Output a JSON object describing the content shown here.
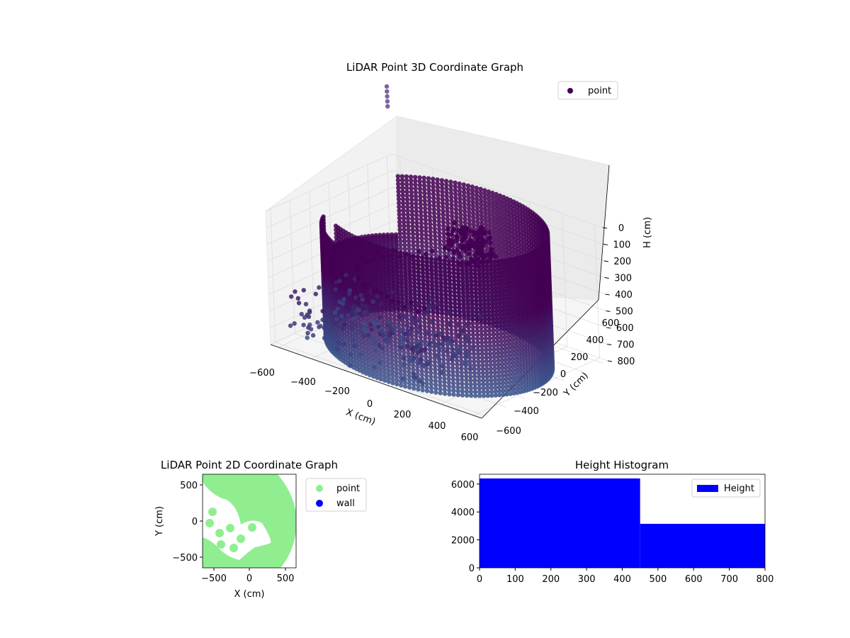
{
  "chart_data": [
    {
      "type": "scatter3d",
      "title": "LiDAR Point 3D Coordinate Graph",
      "xlabel": "X (cm)",
      "ylabel": "Y (cm)",
      "zlabel": "H (cm)",
      "xlim": [
        -650,
        650
      ],
      "ylim": [
        -650,
        650
      ],
      "zlim": [
        0,
        800
      ],
      "z_inverted": true,
      "x_ticks": [
        "−600",
        "−400",
        "−200",
        "0",
        "200",
        "400",
        "600"
      ],
      "y_ticks": [
        "−600",
        "−400",
        "−200",
        "0",
        "200",
        "400",
        "600"
      ],
      "z_ticks": [
        "0",
        "100",
        "200",
        "300",
        "400",
        "500",
        "600",
        "700",
        "800"
      ],
      "grid": true,
      "legend": {
        "position": "top-right",
        "entries": [
          "point"
        ]
      },
      "colormap": "viridis",
      "colors": {
        "low": "#440154",
        "mid": "#3b528b",
        "high": "#31688e"
      },
      "structure": {
        "ring_radius": 600,
        "ring_height_range": [
          0,
          800
        ],
        "columns": 160,
        "rows_per_column": 36
      }
    },
    {
      "type": "scatter",
      "title": "LiDAR Point 2D Coordinate Graph",
      "xlabel": "X (cm)",
      "ylabel": "Y (cm)",
      "xlim": [
        -650,
        650
      ],
      "ylim": [
        -650,
        650
      ],
      "x_ticks": [
        "−500",
        "0",
        "500"
      ],
      "y_ticks": [
        "500",
        "0",
        "−500"
      ],
      "legend": {
        "position": "outside-right",
        "entries": [
          "point",
          "wall"
        ]
      },
      "colors": {
        "point": "#90ee90",
        "wall": "#0000ff"
      }
    },
    {
      "type": "histogram",
      "title": "Height Histogram",
      "xlim": [
        0,
        800
      ],
      "ylim": [
        0,
        6700
      ],
      "x_ticks": [
        "0",
        "100",
        "200",
        "300",
        "400",
        "500",
        "600",
        "700",
        "800"
      ],
      "y_ticks": [
        "0",
        "2000",
        "4000",
        "6000"
      ],
      "bins": [
        {
          "start": 0,
          "end": 450,
          "count": 6400
        },
        {
          "start": 450,
          "end": 800,
          "count": 3150
        }
      ],
      "legend": {
        "position": "top-right",
        "entries": [
          "Height"
        ]
      },
      "colors": {
        "bar": "#0000ff"
      }
    }
  ]
}
